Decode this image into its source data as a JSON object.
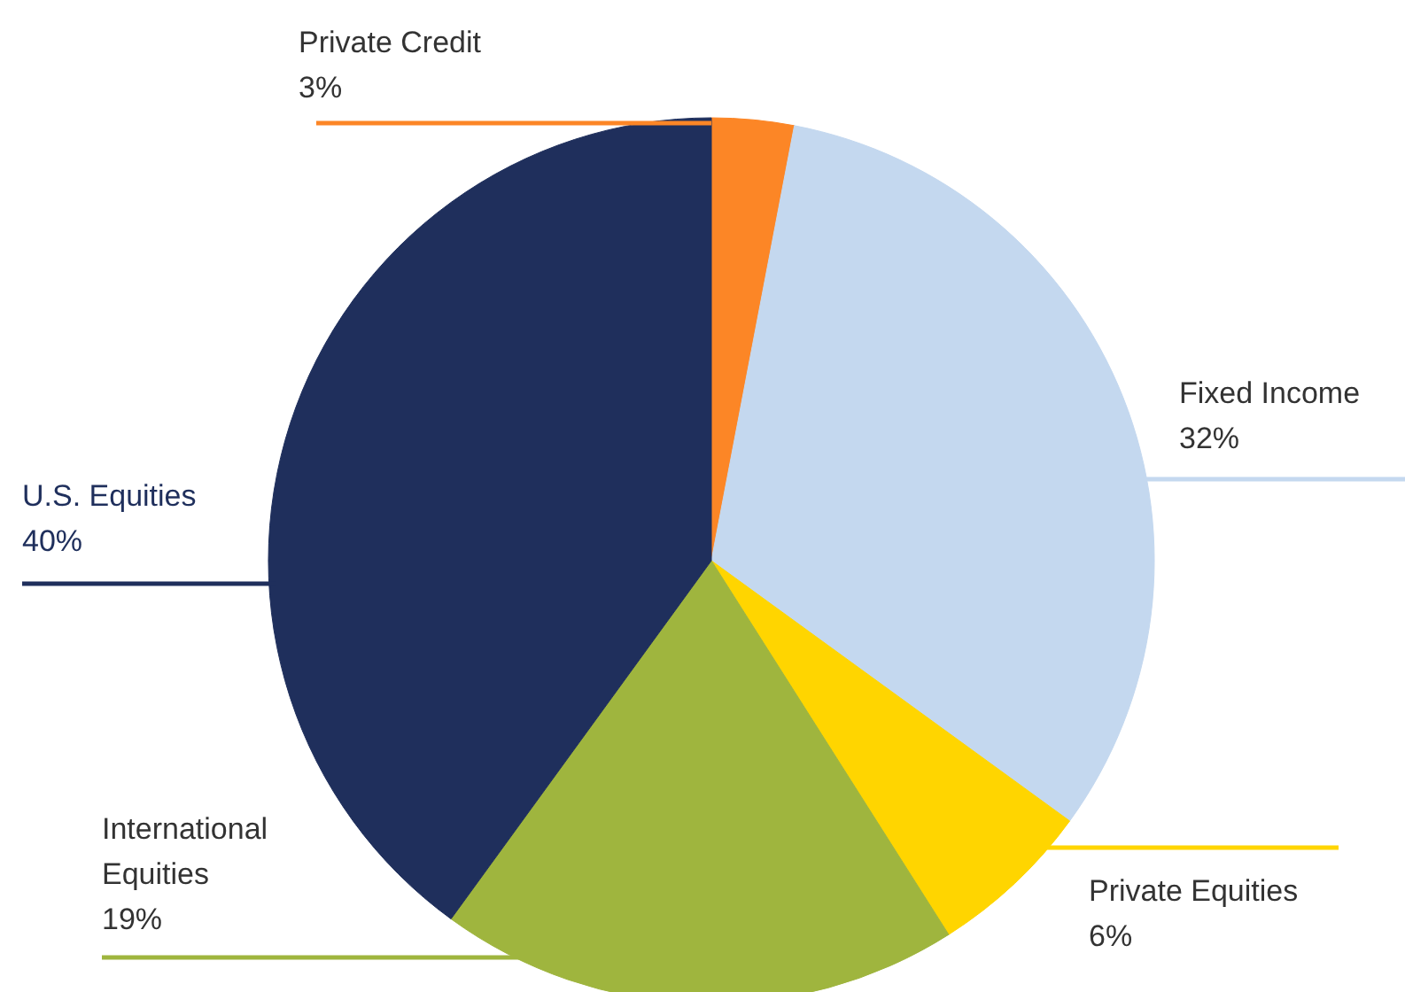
{
  "chart_data": {
    "type": "pie",
    "categories": [
      "Private Credit",
      "Fixed Income",
      "Private Equities",
      "International Equities",
      "U.S. Equities"
    ],
    "values": [
      3,
      32,
      6,
      19,
      40
    ],
    "value_labels": [
      "3%",
      "32%",
      "6%",
      "19%",
      "40%"
    ],
    "colors": [
      "#fc8626",
      "#c4d8ef",
      "#ffd500",
      "#9fb53e",
      "#1f2f5c"
    ]
  }
}
